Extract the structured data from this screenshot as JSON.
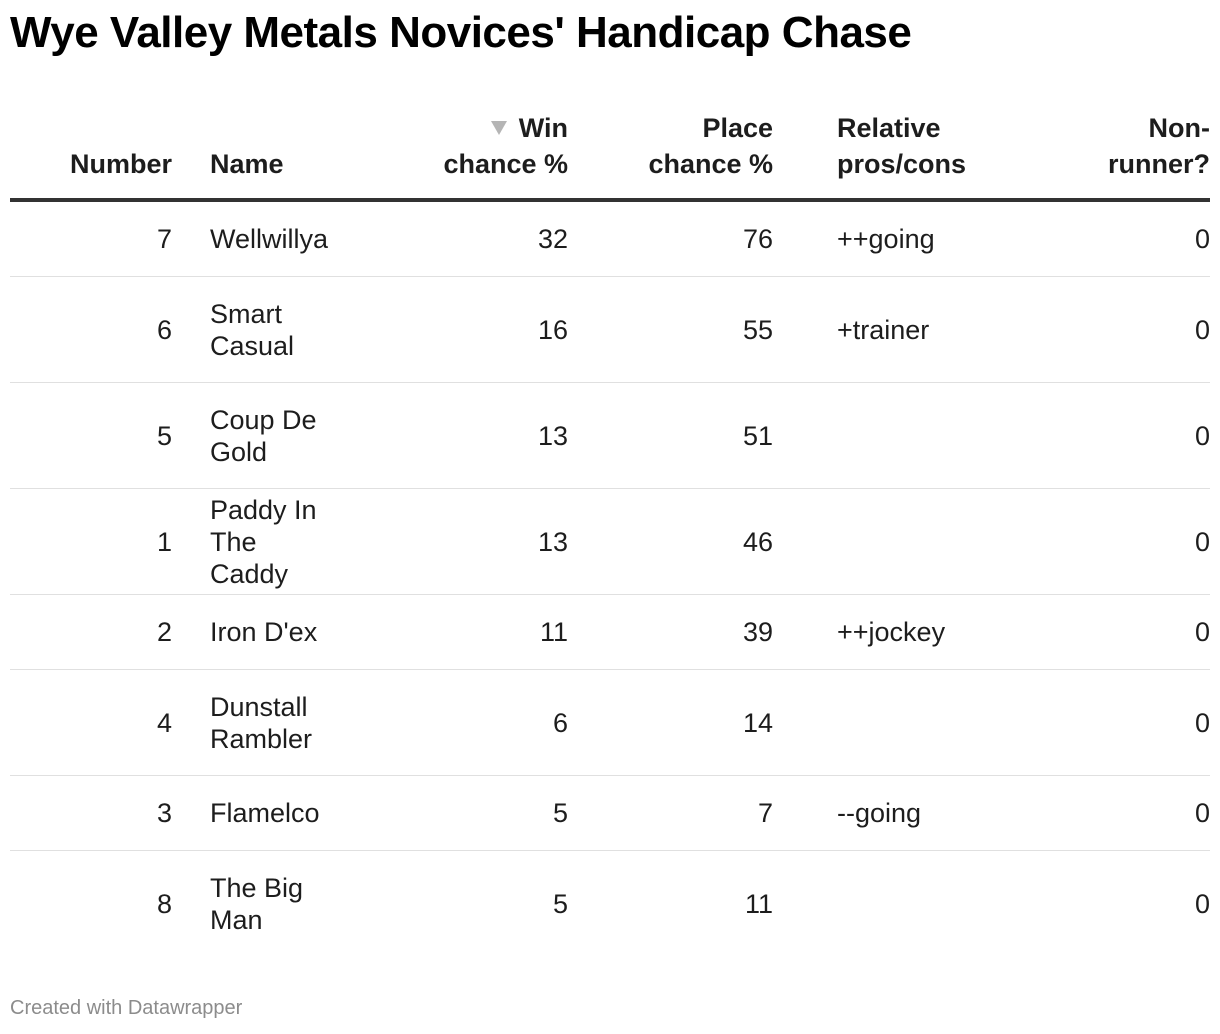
{
  "title": "Wye Valley Metals Novices' Handicap Chase",
  "footer": "Created with Datawrapper",
  "colors": {
    "text": "#1d1d1d",
    "header_rule": "#333333",
    "row_rule": "#e0e0e0",
    "footer": "#8c8c8c",
    "sort_arrow": "#b5b5b5"
  },
  "sort": {
    "column": "Win chance %",
    "direction": "descending",
    "icon": "sort-descending-arrow"
  },
  "chart_data": {
    "type": "table",
    "columns": [
      "Number",
      "Name",
      "Win chance %",
      "Place chance %",
      "Relative pros/cons",
      "Non-runner?"
    ],
    "headers": {
      "number": [
        "Number"
      ],
      "name": [
        "Name"
      ],
      "win": [
        "Win",
        "chance %"
      ],
      "place": [
        "Place",
        "chance %"
      ],
      "relative": [
        "Relative",
        "pros/cons"
      ],
      "nonrunner": [
        "Non-",
        "runner?"
      ]
    },
    "rows": [
      {
        "number": "7",
        "name": [
          "Wellwillya"
        ],
        "win": "32",
        "place": "76",
        "relative": "++going",
        "nonrunner": "0"
      },
      {
        "number": "6",
        "name": [
          "Smart",
          "Casual"
        ],
        "win": "16",
        "place": "55",
        "relative": "+trainer",
        "nonrunner": "0"
      },
      {
        "number": "5",
        "name": [
          "Coup De",
          "Gold"
        ],
        "win": "13",
        "place": "51",
        "relative": "",
        "nonrunner": "0"
      },
      {
        "number": "1",
        "name": [
          "Paddy In",
          "The Caddy"
        ],
        "win": "13",
        "place": "46",
        "relative": "",
        "nonrunner": "0"
      },
      {
        "number": "2",
        "name": [
          "Iron D'ex"
        ],
        "win": "11",
        "place": "39",
        "relative": "++jockey",
        "nonrunner": "0"
      },
      {
        "number": "4",
        "name": [
          "Dunstall",
          "Rambler"
        ],
        "win": "6",
        "place": "14",
        "relative": "",
        "nonrunner": "0"
      },
      {
        "number": "3",
        "name": [
          "Flamelco"
        ],
        "win": "5",
        "place": "7",
        "relative": "--going",
        "nonrunner": "0"
      },
      {
        "number": "8",
        "name": [
          "The Big",
          "Man"
        ],
        "win": "5",
        "place": "11",
        "relative": "",
        "nonrunner": "0"
      }
    ]
  }
}
